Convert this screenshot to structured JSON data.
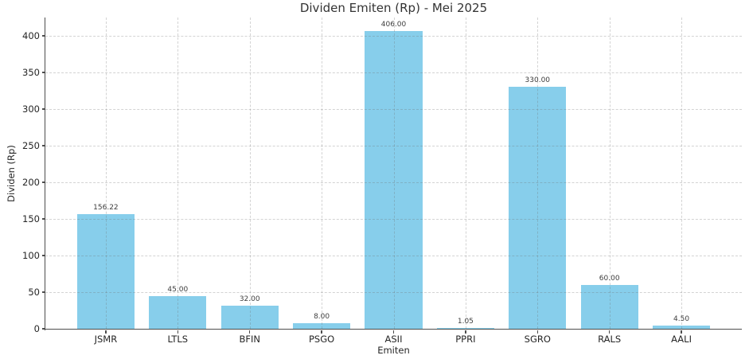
{
  "chart_data": {
    "type": "bar",
    "title": "Dividen Emiten (Rp) - Mei 2025",
    "xlabel": "Emiten",
    "ylabel": "Dividen (Rp)",
    "categories": [
      "JSMR",
      "LTLS",
      "BFIN",
      "PSGO",
      "ASII",
      "PPRI",
      "SGRO",
      "RALS",
      "AALI"
    ],
    "values": [
      156.22,
      45.0,
      32.0,
      8.0,
      406.0,
      1.05,
      330.0,
      60.0,
      4.5
    ],
    "value_labels": [
      "156.22",
      "45.00",
      "32.00",
      "8.00",
      "406.00",
      "1.05",
      "330.00",
      "60.00",
      "4.50"
    ],
    "yticks": [
      0,
      50,
      100,
      150,
      200,
      250,
      300,
      350,
      400
    ],
    "ylim": [
      0,
      425
    ],
    "grid": true,
    "grid_style": "dashed",
    "legend": "none",
    "bar_color": "#87CEEB",
    "spine_color": "#4d4d4d",
    "text_color": "#262626",
    "title_color": "#333333",
    "background_color": "#ffffff"
  }
}
